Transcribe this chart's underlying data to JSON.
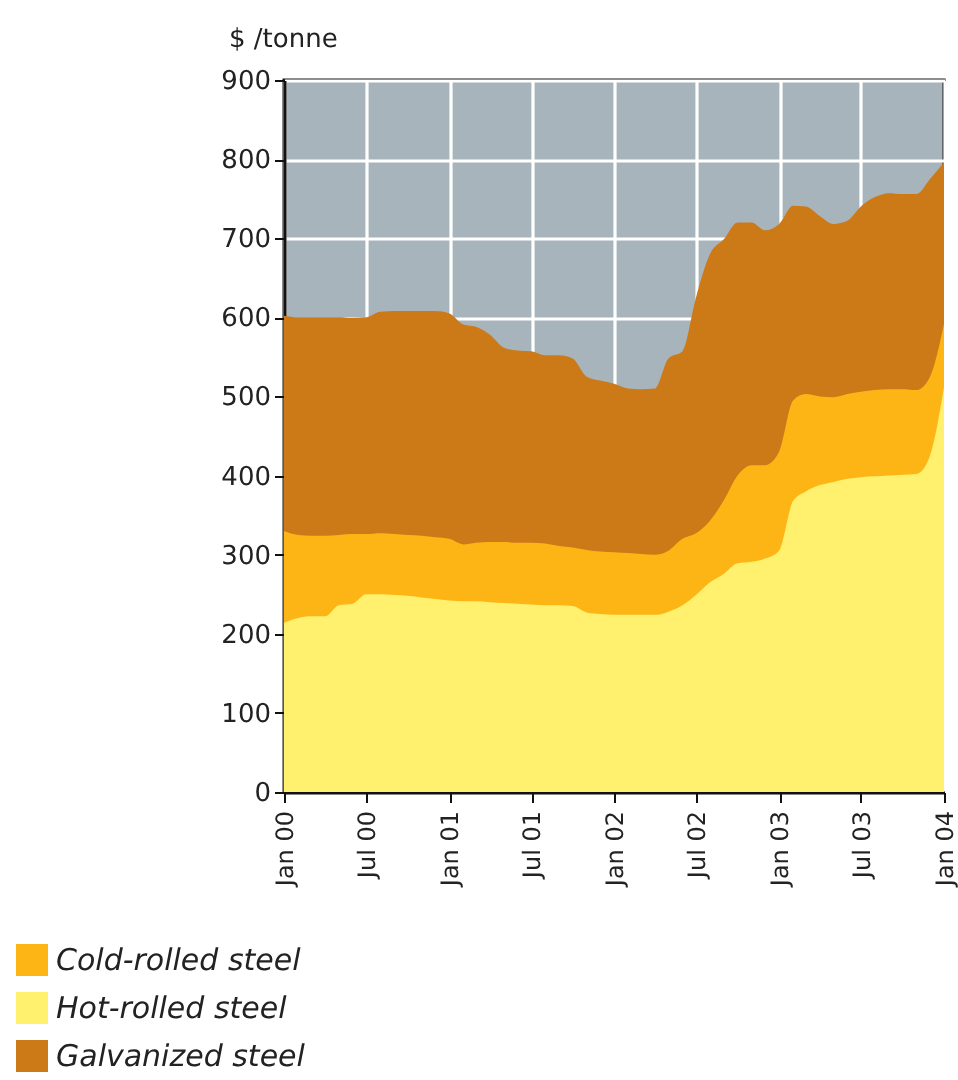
{
  "chart_data": {
    "type": "area",
    "ylabel": "$ /tonne",
    "x": [
      "2000-01",
      "2000-02",
      "2000-03",
      "2000-04",
      "2000-05",
      "2000-06",
      "2000-07",
      "2000-08",
      "2000-09",
      "2000-10",
      "2000-11",
      "2000-12",
      "2001-01",
      "2001-02",
      "2001-03",
      "2001-04",
      "2001-05",
      "2001-06",
      "2001-07",
      "2001-08",
      "2001-09",
      "2001-10",
      "2001-11",
      "2001-12",
      "2002-01",
      "2002-02",
      "2002-03",
      "2002-04",
      "2002-05",
      "2002-06",
      "2002-07",
      "2002-08",
      "2002-09",
      "2002-10",
      "2002-11",
      "2002-12",
      "2003-01",
      "2003-02",
      "2003-03",
      "2003-04",
      "2003-05",
      "2003-06",
      "2003-07",
      "2003-08",
      "2003-09",
      "2003-10",
      "2003-11",
      "2003-12",
      "2004-01"
    ],
    "xlim": [
      "2000-01",
      "2004-01"
    ],
    "xticks": [
      {
        "value": "2000-01",
        "label": "Jan 00"
      },
      {
        "value": "2000-07",
        "label": "Jul 00"
      },
      {
        "value": "2001-01",
        "label": "Jan 01"
      },
      {
        "value": "2001-07",
        "label": "Jul 01"
      },
      {
        "value": "2002-01",
        "label": "Jan 02"
      },
      {
        "value": "2002-07",
        "label": "Jul 02"
      },
      {
        "value": "2003-01",
        "label": "Jan 03"
      },
      {
        "value": "2003-07",
        "label": "Jul 03"
      },
      {
        "value": "2004-01",
        "label": "Jan 04"
      }
    ],
    "ylim": [
      0,
      900
    ],
    "yticks": [
      0,
      100,
      200,
      300,
      400,
      500,
      600,
      700,
      800,
      900
    ],
    "grid": true,
    "legend": "bottom",
    "series": [
      {
        "name": "Cold-rolled steel",
        "color": "#fdb515",
        "values": [
          330,
          325,
          324,
          324,
          325,
          326,
          326,
          327,
          326,
          325,
          324,
          322,
          320,
          313,
          315,
          316,
          316,
          315,
          315,
          314,
          311,
          309,
          306,
          304,
          303,
          302,
          301,
          300,
          305,
          320,
          327,
          343,
          369,
          400,
          413,
          413,
          430,
          495,
          503,
          500,
          499,
          503,
          506,
          508,
          509,
          509,
          508,
          525,
          592
        ]
      },
      {
        "name": "Hot-rolled steel",
        "color": "#fff06e",
        "values": [
          214,
          220,
          222,
          222,
          236,
          238,
          250,
          250,
          249,
          248,
          246,
          244,
          242,
          241,
          241,
          240,
          239,
          238,
          237,
          236,
          236,
          235,
          227,
          225,
          224,
          224,
          224,
          224,
          228,
          236,
          249,
          265,
          276,
          289,
          291,
          295,
          305,
          368,
          380,
          388,
          392,
          396,
          398,
          399,
          400,
          401,
          402,
          425,
          512
        ]
      },
      {
        "name": "Galvanized steel",
        "color": "#cc7a18",
        "values": [
          602,
          600,
          600,
          600,
          600,
          599,
          600,
          607,
          608,
          608,
          608,
          608,
          605,
          591,
          588,
          578,
          562,
          558,
          557,
          552,
          552,
          548,
          525,
          520,
          516,
          510,
          509,
          510,
          548,
          557,
          625,
          680,
          699,
          720,
          720,
          710,
          718,
          741,
          740,
          728,
          718,
          722,
          740,
          752,
          757,
          756,
          756,
          775,
          796
        ]
      }
    ]
  }
}
